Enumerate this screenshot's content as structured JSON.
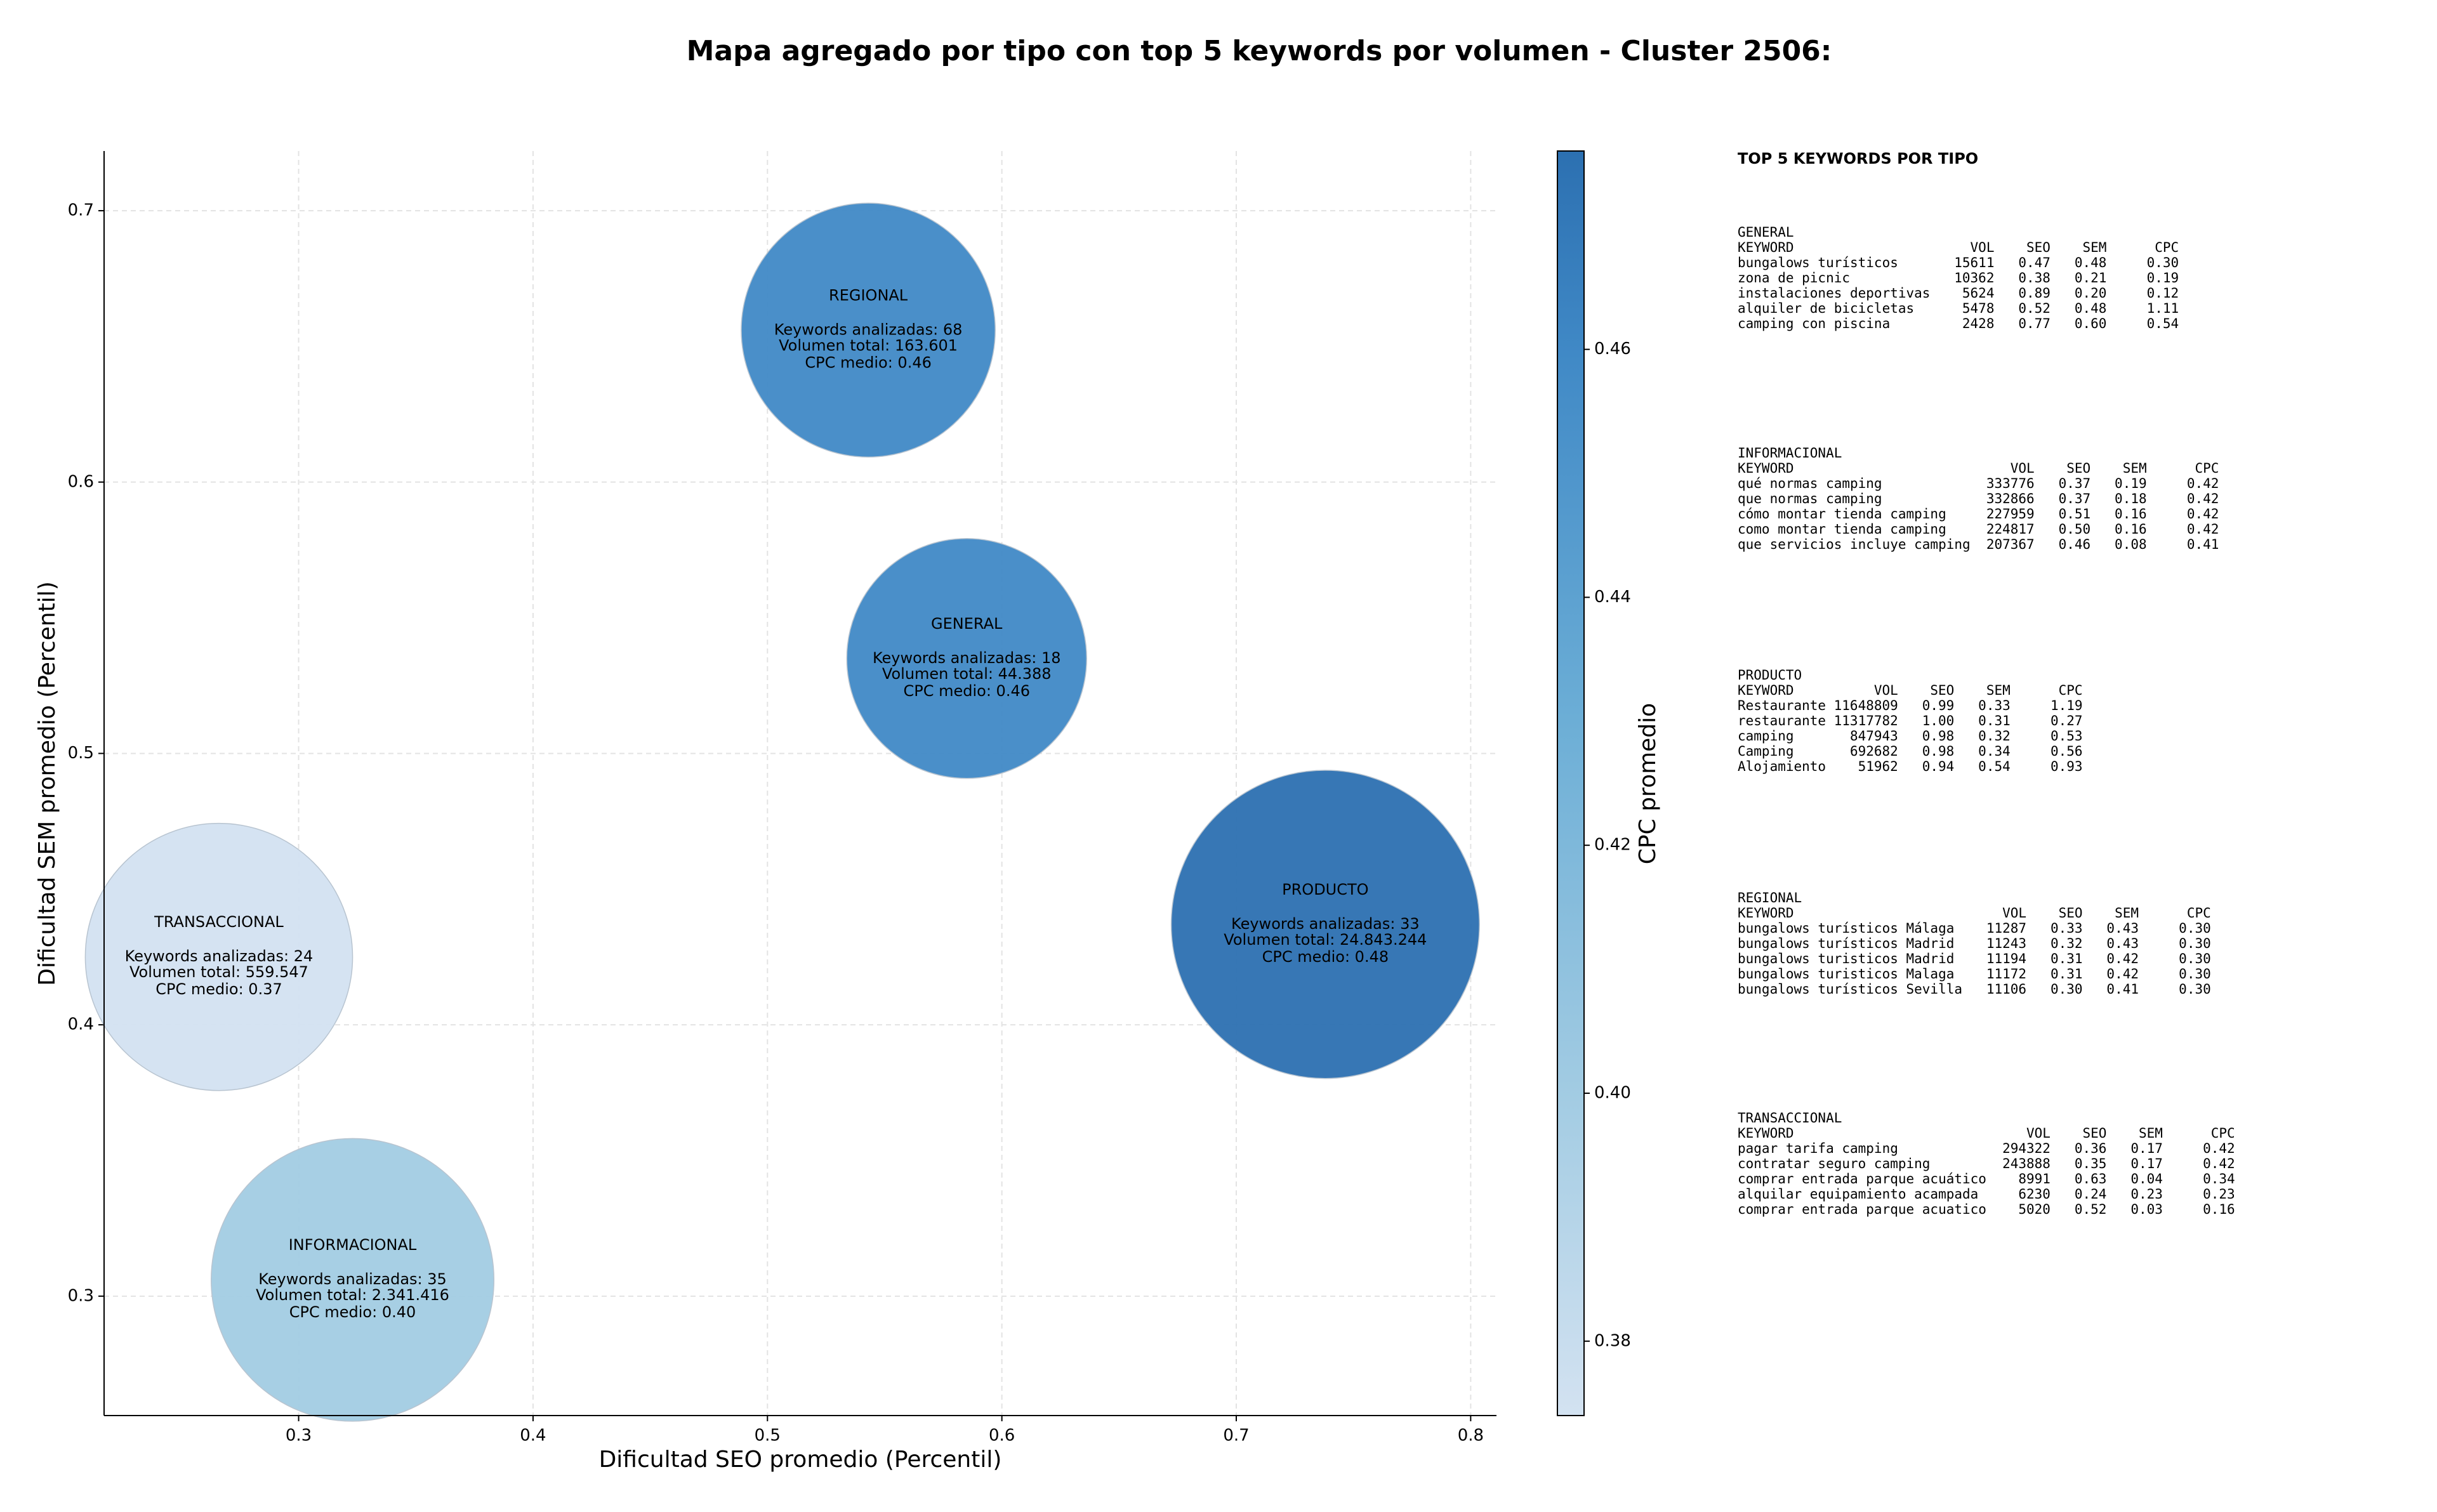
{
  "chart_data": {
    "type": "bubble",
    "title": "Mapa agregado por tipo con top 5 keywords por volumen - Cluster 2506:",
    "x_label": "Dificultad SEO promedio (Percentil)",
    "y_label": "Dificultad SEM promedio (Percentil)",
    "colorbar_label": "CPC promedio",
    "x": [
      0.543,
      0.585,
      0.738,
      0.266,
      0.323
    ],
    "values": [
      0.656,
      0.535,
      0.437,
      0.425,
      0.306
    ],
    "sizes": [
      163601,
      44388,
      24843244,
      559547,
      2341416
    ],
    "color_values": [
      0.46,
      0.46,
      0.48,
      0.37,
      0.4
    ],
    "annotations": [
      [
        "REGIONAL",
        "Keywords analizadas: 68",
        "Volumen total: 163.601",
        "CPC medio: 0.46"
      ],
      [
        "GENERAL",
        "Keywords analizadas: 18",
        "Volumen total: 44.388",
        "CPC medio: 0.46"
      ],
      [
        "PRODUCTO",
        "Keywords analizadas: 33",
        "Volumen total: 24.843.244",
        "CPC medio: 0.48"
      ],
      [
        "TRANSACCIONAL",
        "Keywords analizadas: 24",
        "Volumen total: 559.547",
        "CPC medio: 0.37"
      ],
      [
        "INFORMACIONAL",
        "Keywords analizadas: 35",
        "Volumen total: 2.341.416",
        "CPC medio: 0.40"
      ]
    ],
    "xlim": [
      0.217,
      0.811
    ],
    "ylim": [
      0.256,
      0.722
    ],
    "xticks": [
      0.3,
      0.4,
      0.5,
      0.6,
      0.7,
      0.8
    ],
    "yticks": [
      0.3,
      0.4,
      0.5,
      0.6,
      0.7
    ],
    "clim": [
      0.374,
      0.476
    ],
    "cticks": [
      0.38,
      0.4,
      0.42,
      0.44,
      0.46
    ],
    "colormap": "Blues",
    "grid": true
  },
  "top_keywords": {
    "title": "TOP 5 KEYWORDS POR TIPO",
    "groups": [
      {
        "name": "GENERAL",
        "columns": [
          "KEYWORD",
          "VOL",
          "SEO",
          "SEM",
          "CPC"
        ],
        "rows": [
          [
            "bungalows turísticos",
            "15611",
            "0.47",
            "0.48",
            "0.30"
          ],
          [
            "zona de picnic",
            "10362",
            "0.38",
            "0.21",
            "0.19"
          ],
          [
            "instalaciones deportivas",
            "5624",
            "0.89",
            "0.20",
            "0.12"
          ],
          [
            "alquiler de bicicletas",
            "5478",
            "0.52",
            "0.48",
            "1.11"
          ],
          [
            "camping con piscina",
            "2428",
            "0.77",
            "0.60",
            "0.54"
          ]
        ]
      },
      {
        "name": "INFORMACIONAL",
        "columns": [
          "KEYWORD",
          "VOL",
          "SEO",
          "SEM",
          "CPC"
        ],
        "rows": [
          [
            "qué normas camping",
            "333776",
            "0.37",
            "0.19",
            "0.42"
          ],
          [
            "que normas camping",
            "332866",
            "0.37",
            "0.18",
            "0.42"
          ],
          [
            "cómo montar tienda camping",
            "227959",
            "0.51",
            "0.16",
            "0.42"
          ],
          [
            "como montar tienda camping",
            "224817",
            "0.50",
            "0.16",
            "0.42"
          ],
          [
            "que servicios incluye camping",
            "207367",
            "0.46",
            "0.08",
            "0.41"
          ]
        ]
      },
      {
        "name": "PRODUCTO",
        "columns": [
          "KEYWORD",
          "VOL",
          "SEO",
          "SEM",
          "CPC"
        ],
        "rows": [
          [
            "Restaurante",
            "11648809",
            "0.99",
            "0.33",
            "1.19"
          ],
          [
            "restaurante",
            "11317782",
            "1.00",
            "0.31",
            "0.27"
          ],
          [
            "camping",
            "847943",
            "0.98",
            "0.32",
            "0.53"
          ],
          [
            "Camping",
            "692682",
            "0.98",
            "0.34",
            "0.56"
          ],
          [
            "Alojamiento",
            "51962",
            "0.94",
            "0.54",
            "0.93"
          ]
        ]
      },
      {
        "name": "REGIONAL",
        "columns": [
          "KEYWORD",
          "VOL",
          "SEO",
          "SEM",
          "CPC"
        ],
        "rows": [
          [
            "bungalows turísticos Málaga",
            "11287",
            "0.33",
            "0.43",
            "0.30"
          ],
          [
            "bungalows turísticos Madrid",
            "11243",
            "0.32",
            "0.43",
            "0.30"
          ],
          [
            "bungalows turisticos Madrid",
            "11194",
            "0.31",
            "0.42",
            "0.30"
          ],
          [
            "bungalows turisticos Malaga",
            "11172",
            "0.31",
            "0.42",
            "0.30"
          ],
          [
            "bungalows turísticos Sevilla",
            "11106",
            "0.30",
            "0.41",
            "0.30"
          ]
        ]
      },
      {
        "name": "TRANSACCIONAL",
        "columns": [
          "KEYWORD",
          "VOL",
          "SEO",
          "SEM",
          "CPC"
        ],
        "rows": [
          [
            "pagar tarifa camping",
            "294322",
            "0.36",
            "0.17",
            "0.42"
          ],
          [
            "contratar seguro camping",
            "243888",
            "0.35",
            "0.17",
            "0.42"
          ],
          [
            "comprar entrada parque acuático",
            "8991",
            "0.63",
            "0.04",
            "0.34"
          ],
          [
            "alquilar equipamiento acampada",
            "6230",
            "0.24",
            "0.23",
            "0.23"
          ],
          [
            "comprar entrada parque acuatico",
            "5020",
            "0.52",
            "0.03",
            "0.16"
          ]
        ]
      }
    ]
  }
}
